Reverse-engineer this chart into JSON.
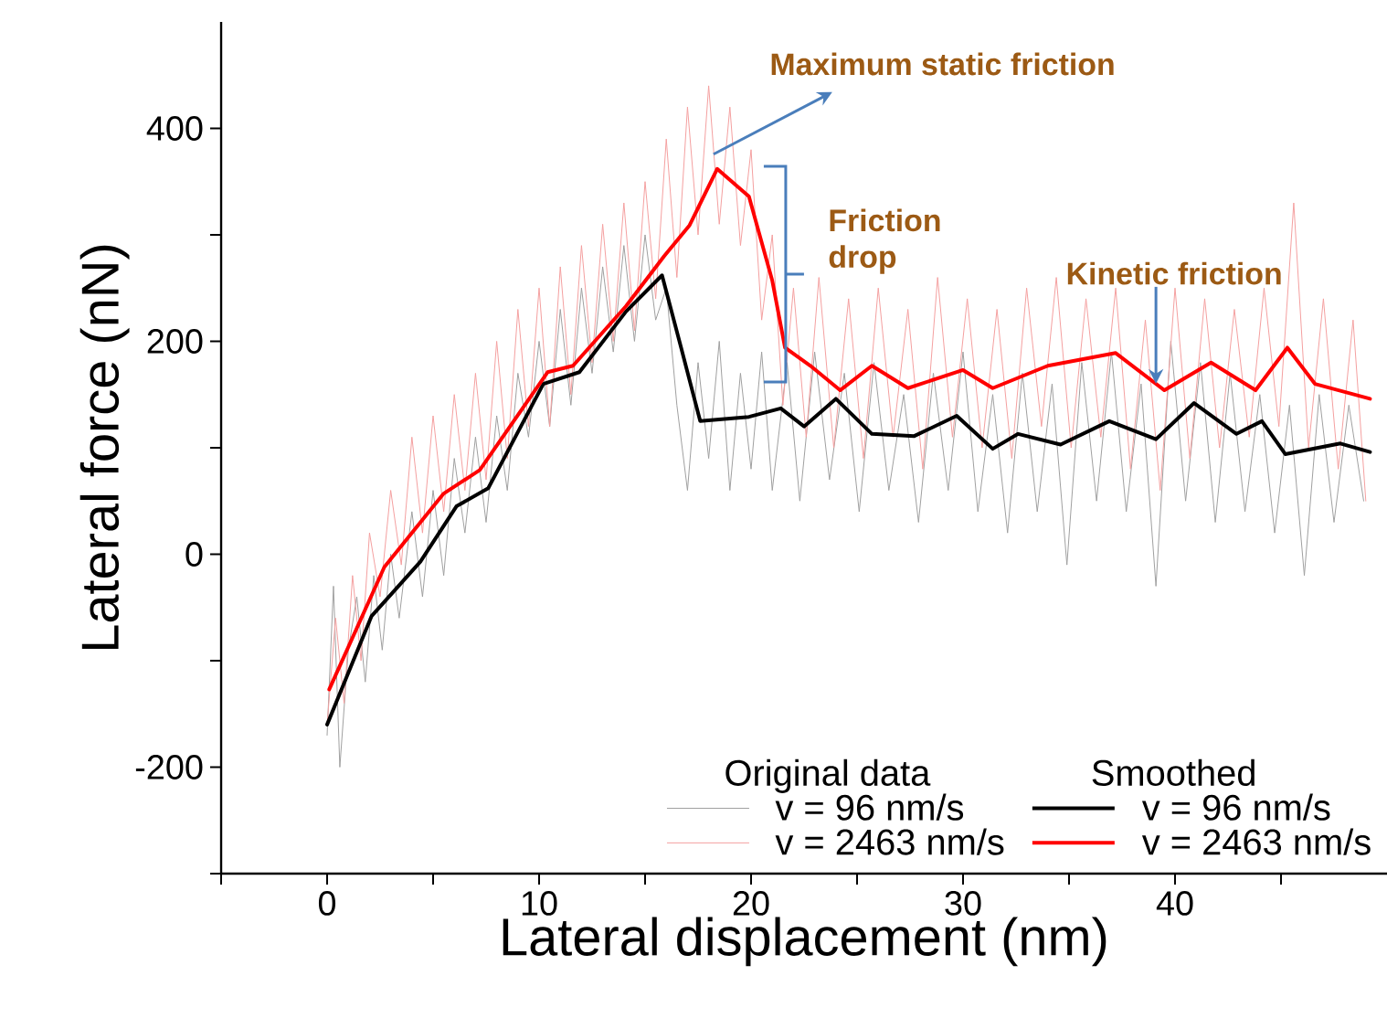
{
  "chart_data": {
    "type": "line",
    "xlabel": "Lateral displacement (nm)",
    "ylabel": "Lateral force (nN)",
    "xlim": [
      -5,
      50
    ],
    "ylim": [
      -300,
      500
    ],
    "xticks": [
      {
        "value": -5,
        "label": null
      },
      0,
      {
        "value": 5,
        "label": null
      },
      10,
      {
        "value": 15,
        "label": null
      },
      20,
      {
        "value": 25,
        "label": null
      },
      30,
      {
        "value": 35,
        "label": null
      },
      40,
      {
        "value": 45,
        "label": null
      }
    ],
    "yticks": [
      {
        "value": -300,
        "label": null
      },
      -200,
      {
        "value": -100,
        "label": null
      },
      0,
      {
        "value": 100,
        "label": null
      },
      200,
      {
        "value": 300,
        "label": null
      },
      400
    ],
    "marker": "none",
    "legend": "bottom right",
    "annotations": [
      {
        "text": "Maximum static friction",
        "x": 18.4,
        "y": 362
      },
      {
        "text": "Friction drop",
        "x": 20.6,
        "y": 263
      },
      {
        "text": "Kinetic friction",
        "x": 39.1,
        "y": 155
      },
      "Original data",
      "Smoothed"
    ],
    "series": [
      {
        "name": "v = 96 nm/s",
        "color": "#a0a0a0",
        "x": [
          0,
          0.3,
          0.6,
          1,
          1.4,
          1.8,
          2.2,
          2.6,
          3,
          3.4,
          4,
          4.5,
          5,
          5.5,
          6,
          6.5,
          7,
          7.5,
          8,
          8.5,
          9,
          9.5,
          10,
          10.5,
          11,
          11.5,
          12,
          12.5,
          13,
          13.5,
          14,
          14.5,
          15,
          15.5,
          16,
          16.5,
          17,
          17.5,
          18,
          18.5,
          19,
          19.5,
          20,
          20.5,
          21,
          21.7,
          22.3,
          23,
          23.7,
          24.4,
          25.1,
          25.8,
          26.5,
          27.2,
          27.9,
          28.6,
          29.3,
          30,
          30.7,
          31.4,
          32.1,
          32.8,
          33.5,
          34.2,
          34.9,
          35.6,
          36.3,
          37,
          37.7,
          38.4,
          39.1,
          39.8,
          40.5,
          41.2,
          41.9,
          42.6,
          43.3,
          44,
          44.7,
          45.4,
          46.1,
          46.8,
          47.5,
          48.2,
          48.9
        ],
        "values": [
          -170,
          -30,
          -200,
          -90,
          -40,
          -120,
          -20,
          -90,
          0,
          -60,
          40,
          -40,
          60,
          -20,
          90,
          20,
          110,
          30,
          130,
          60,
          170,
          110,
          200,
          120,
          230,
          140,
          250,
          170,
          270,
          190,
          290,
          200,
          300,
          220,
          250,
          140,
          60,
          180,
          90,
          200,
          60,
          170,
          80,
          190,
          60,
          180,
          50,
          190,
          70,
          170,
          40,
          180,
          60,
          150,
          30,
          170,
          60,
          190,
          40,
          150,
          20,
          170,
          40,
          160,
          -10,
          180,
          50,
          190,
          40,
          160,
          -30,
          200,
          50,
          180,
          30,
          170,
          40,
          150,
          20,
          140,
          -20,
          150,
          30,
          140,
          50
        ]
      },
      {
        "name": "v = 2463 nm/s",
        "color": "#f4a0a0",
        "x": [
          0,
          0.4,
          0.8,
          1.2,
          1.6,
          2,
          2.5,
          3,
          3.5,
          4,
          4.5,
          5,
          5.5,
          6,
          6.5,
          7,
          7.5,
          8,
          8.5,
          9,
          9.5,
          10,
          10.5,
          11,
          11.5,
          12,
          12.5,
          13,
          13.5,
          14,
          14.5,
          15,
          15.5,
          16,
          16.5,
          17,
          17.5,
          18,
          18.5,
          19,
          19.5,
          20,
          20.5,
          21,
          21.5,
          22,
          22.6,
          23.2,
          23.9,
          24.6,
          25.3,
          26,
          26.7,
          27.4,
          28.1,
          28.8,
          29.5,
          30.2,
          30.9,
          31.6,
          32.3,
          33,
          33.7,
          34.4,
          35.1,
          35.8,
          36.5,
          37.2,
          37.9,
          38.6,
          39.3,
          40,
          40.7,
          41.4,
          42.1,
          42.8,
          43.5,
          44.2,
          44.9,
          45.6,
          46.3,
          47,
          47.7,
          48.4,
          49
        ],
        "values": [
          -160,
          -60,
          -140,
          -20,
          -100,
          20,
          -40,
          60,
          -10,
          110,
          20,
          130,
          40,
          150,
          60,
          170,
          70,
          200,
          90,
          230,
          120,
          250,
          120,
          270,
          150,
          290,
          180,
          310,
          200,
          330,
          210,
          350,
          240,
          390,
          260,
          420,
          300,
          440,
          310,
          420,
          290,
          380,
          220,
          300,
          140,
          250,
          110,
          260,
          100,
          240,
          90,
          250,
          110,
          230,
          80,
          260,
          110,
          240,
          100,
          230,
          90,
          250,
          120,
          260,
          100,
          240,
          110,
          250,
          80,
          220,
          60,
          250,
          90,
          240,
          100,
          230,
          110,
          250,
          120,
          330,
          100,
          240,
          80,
          220,
          50
        ]
      },
      {
        "name": "v = 96 nm/s",
        "color": "#000000",
        "x": [
          0,
          2.1,
          4.4,
          6.1,
          7.6,
          10.2,
          11.9,
          14.1,
          15.8,
          16.7,
          17.6,
          19.9,
          21.4,
          22.5,
          24,
          25.7,
          27.7,
          29.7,
          31.4,
          32.6,
          34.6,
          36.9,
          39.1,
          40.9,
          42.9,
          44.1,
          45.2,
          47.8,
          49.2
        ],
        "values": [
          -160,
          -58,
          -7,
          45,
          62,
          160,
          171,
          228,
          262,
          194,
          125,
          129,
          137,
          120,
          146,
          113,
          111,
          130,
          99,
          113,
          103,
          125,
          108,
          142,
          113,
          125,
          94,
          104,
          96
        ]
      },
      {
        "name": "v = 2463 nm/s",
        "color": "#ff0000",
        "x": [
          0.1,
          2.7,
          5.5,
          7.2,
          10.4,
          11.6,
          14.1,
          15.9,
          17.1,
          18.4,
          19.9,
          21,
          21.6,
          22.8,
          24.2,
          25.7,
          27.4,
          30,
          31.4,
          34,
          37.2,
          39.5,
          41.7,
          43.8,
          45.3,
          46.6,
          49.2
        ],
        "values": [
          -127,
          -12,
          57,
          79,
          171,
          177,
          233,
          280,
          309,
          362,
          336,
          257,
          194,
          177,
          154,
          177,
          156,
          173,
          156,
          177,
          189,
          154,
          180,
          154,
          194,
          160,
          146
        ]
      }
    ]
  }
}
